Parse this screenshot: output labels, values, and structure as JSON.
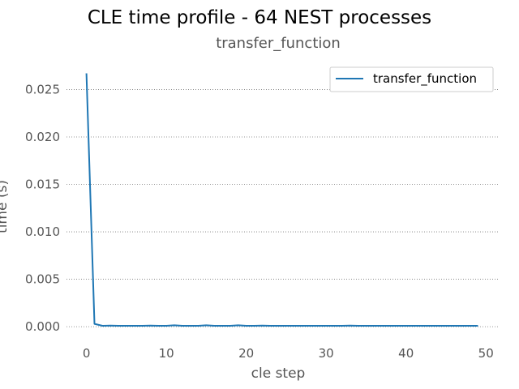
{
  "chart_data": {
    "type": "line",
    "title": "CLE time profile - 64 NEST processes",
    "subtitle": "transfer_function",
    "xlabel": "cle step",
    "ylabel": "time (s)",
    "xlim": [
      -2.5,
      51.5
    ],
    "ylim": [
      -0.0011,
      0.0276
    ],
    "xticks": [
      0,
      10,
      20,
      30,
      40,
      50
    ],
    "xtick_labels": [
      "0",
      "10",
      "20",
      "30",
      "40",
      "50"
    ],
    "yticks": [
      0.0,
      0.005,
      0.01,
      0.015,
      0.02,
      0.025
    ],
    "ytick_labels": [
      "0.000",
      "0.005",
      "0.010",
      "0.015",
      "0.020",
      "0.025"
    ],
    "grid": "y-dotted",
    "legend_position": "top-right",
    "series": [
      {
        "name": "transfer_function",
        "color": "#1f77b4",
        "x": [
          0,
          1,
          2,
          3,
          4,
          5,
          6,
          7,
          8,
          9,
          10,
          11,
          12,
          13,
          14,
          15,
          16,
          17,
          18,
          19,
          20,
          21,
          22,
          23,
          24,
          25,
          26,
          27,
          28,
          29,
          30,
          31,
          32,
          33,
          34,
          35,
          36,
          37,
          38,
          39,
          40,
          41,
          42,
          43,
          44,
          45,
          46,
          47,
          48,
          49
        ],
        "values": [
          0.0267,
          0.0003,
          0.0001,
          0.00012,
          0.0001,
          0.0001,
          0.0001,
          0.0001,
          0.00012,
          0.0001,
          0.0001,
          0.00015,
          0.0001,
          0.0001,
          0.0001,
          0.00015,
          0.0001,
          0.0001,
          0.0001,
          0.00015,
          0.0001,
          0.0001,
          0.00012,
          0.0001,
          0.0001,
          0.0001,
          0.0001,
          0.0001,
          0.0001,
          0.0001,
          0.0001,
          0.0001,
          0.0001,
          0.00012,
          0.0001,
          0.0001,
          0.0001,
          0.0001,
          0.0001,
          0.0001,
          0.0001,
          0.0001,
          0.0001,
          0.0001,
          0.0001,
          0.0001,
          0.0001,
          0.0001,
          0.0001,
          0.0001
        ]
      }
    ]
  }
}
